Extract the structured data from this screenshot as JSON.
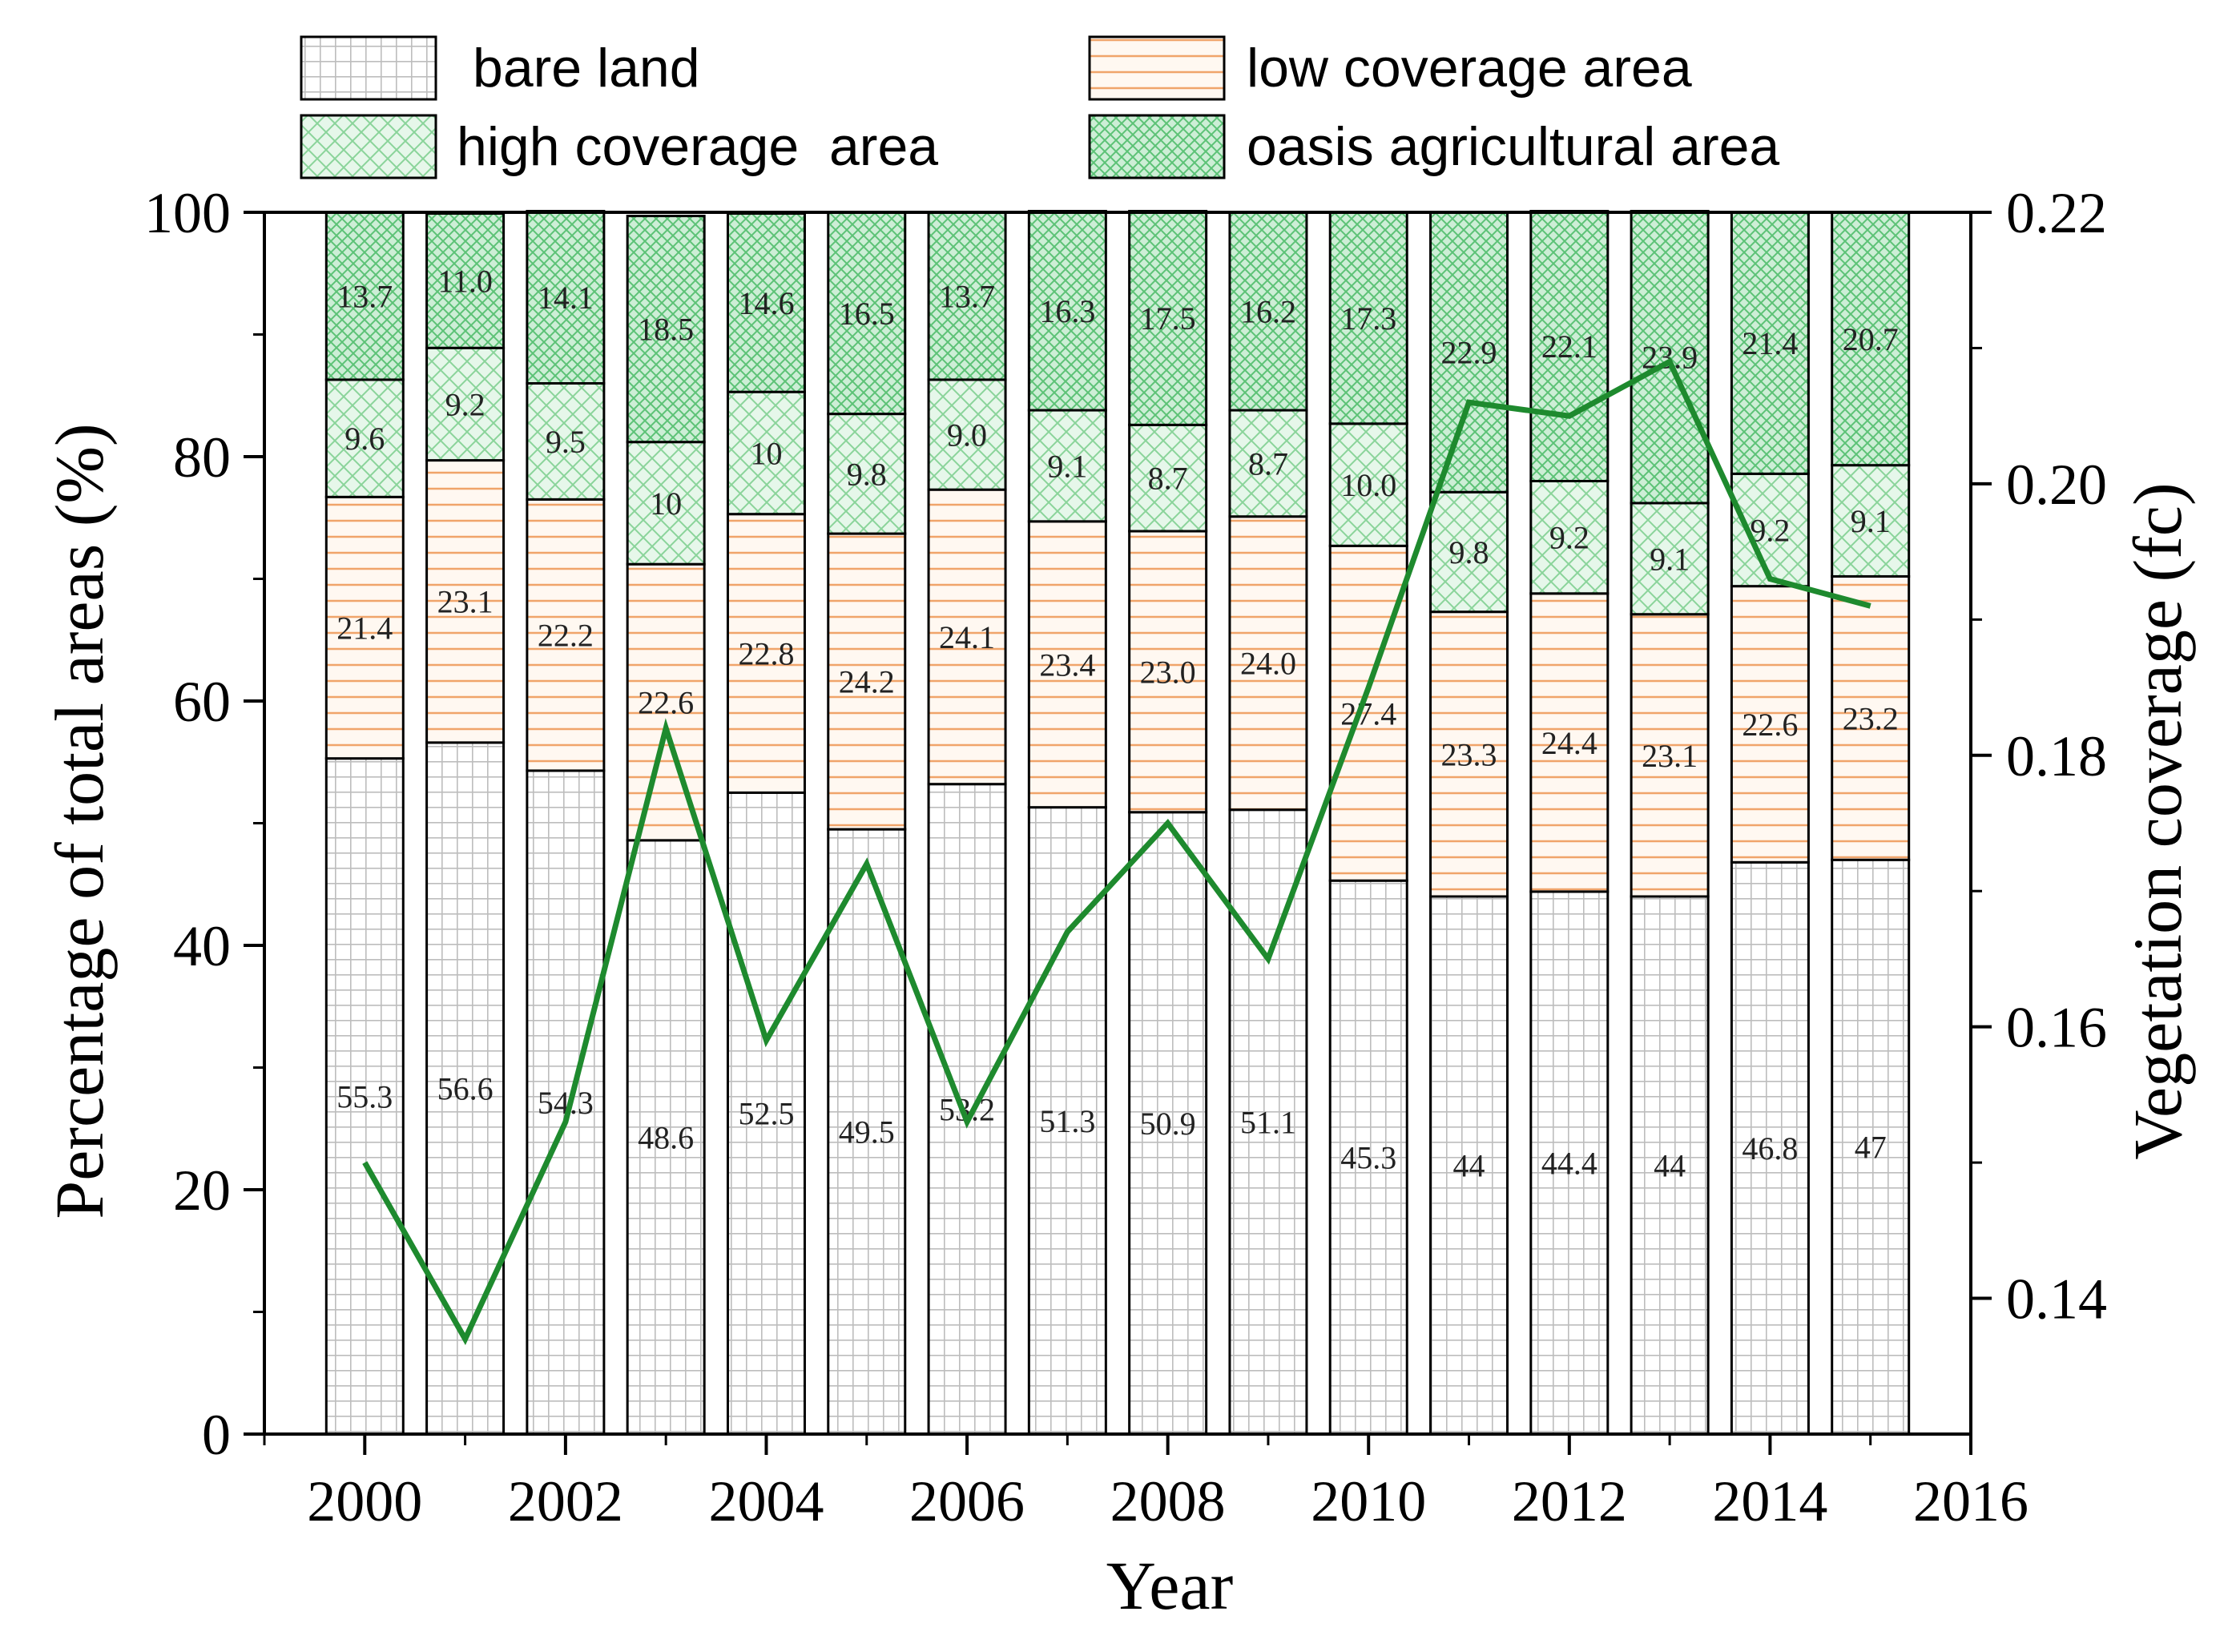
{
  "chart_data": {
    "type": "bar",
    "stacked": true,
    "x": [
      2000,
      2001,
      2002,
      2003,
      2004,
      2005,
      2006,
      2007,
      2008,
      2009,
      2010,
      2011,
      2012,
      2013,
      2014,
      2015
    ],
    "series": [
      {
        "name": "bare land",
        "values": [
          55.3,
          56.6,
          54.3,
          48.6,
          52.5,
          49.5,
          53.2,
          51.3,
          50.9,
          51.1,
          45.3,
          44,
          44.4,
          44,
          46.8,
          47
        ],
        "labels": [
          "55.3",
          "56.6",
          "54.3",
          "48.6",
          "52.5",
          "49.5",
          "53.2",
          "51.3",
          "50.9",
          "51.1",
          "45.3",
          "44",
          "44.4",
          "44",
          "46.8",
          "47"
        ]
      },
      {
        "name": "low coverage area",
        "values": [
          21.4,
          23.1,
          22.2,
          22.6,
          22.8,
          24.2,
          24.1,
          23.4,
          23.0,
          24.0,
          27.4,
          23.3,
          24.4,
          23.1,
          22.6,
          23.2
        ],
        "labels": [
          "21.4",
          "23.1",
          "22.2",
          "22.6",
          "22.8",
          "24.2",
          "24.1",
          "23.4",
          "23.0",
          "24.0",
          "27.4",
          "23.3",
          "24.4",
          "23.1",
          "22.6",
          "23.2"
        ]
      },
      {
        "name": "high coverage  area",
        "values": [
          9.6,
          9.2,
          9.5,
          10,
          10,
          9.8,
          9.0,
          9.1,
          8.7,
          8.7,
          10.0,
          9.8,
          9.2,
          9.1,
          9.2,
          9.1
        ],
        "labels": [
          "9.6",
          "9.2",
          "9.5",
          "10",
          "10",
          "9.8",
          "9.0",
          "9.1",
          "8.7",
          "8.7",
          "10.0",
          "9.8",
          "9.2",
          "9.1",
          "9.2",
          "9.1"
        ]
      },
      {
        "name": "oasis agricultural area",
        "values": [
          13.7,
          11.0,
          14.1,
          18.5,
          14.6,
          16.5,
          13.7,
          16.3,
          17.5,
          16.2,
          17.3,
          22.9,
          22.1,
          23.9,
          21.4,
          20.7
        ],
        "labels": [
          "13.7",
          "11.0",
          "14.1",
          "18.5",
          "14.6",
          "16.5",
          "13.7",
          "16.3",
          "17.5",
          "16.2",
          "17.3",
          "22.9",
          "22.1",
          "23.9",
          "21.4",
          "20.7"
        ]
      }
    ],
    "line_series": {
      "name": "Vegetation coverage (fc)",
      "axis": "right",
      "values": [
        0.15,
        0.137,
        0.153,
        0.182,
        0.159,
        0.172,
        0.153,
        0.167,
        0.175,
        0.165,
        0.185,
        0.206,
        0.205,
        0.209,
        0.193,
        0.191
      ]
    },
    "xlabel": "Year",
    "ylabel": "Percentage of total areas (%)",
    "y2label": "Vegetation coverage (fc)",
    "xlim": [
      1999,
      2016
    ],
    "ylim": [
      0,
      100
    ],
    "y2lim": [
      0.13,
      0.22
    ],
    "xticks": [
      "2000",
      "2002",
      "2004",
      "2006",
      "2008",
      "2010",
      "2012",
      "2014",
      "2016"
    ],
    "yticks": [
      "0",
      "20",
      "40",
      "60",
      "80",
      "100"
    ],
    "y2ticks": [
      "0.14",
      "0.16",
      "0.18",
      "0.20",
      "0.22"
    ],
    "legend_position": "top",
    "grid": false
  },
  "colors": {
    "bare_fill": "#ffffff",
    "bare_hatch": "#bdbdbd",
    "low_fill": "#fff8f1",
    "low_hatch": "#f0a46a",
    "high_fill": "#e6f7ea",
    "high_hatch": "#8ad49a",
    "oasis_fill": "#cdeed6",
    "oasis_hatch": "#5cc276",
    "line": "#1e8a2e",
    "axis": "#000000"
  }
}
